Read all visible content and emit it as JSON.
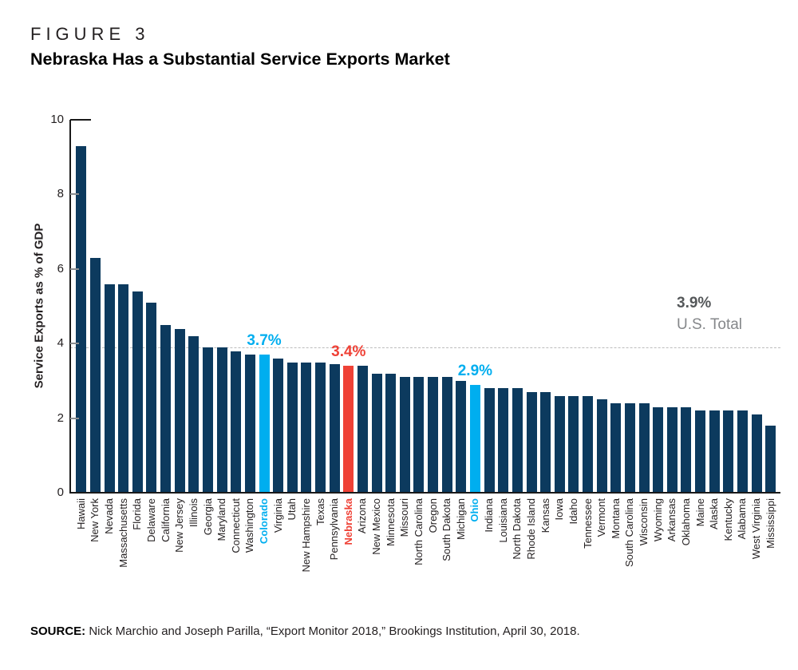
{
  "figure": {
    "label": "FIGURE 3",
    "title": "Nebraska Has a Substantial Service Exports Market"
  },
  "source": {
    "label": "SOURCE:",
    "text": " Nick Marchio and Joseph Parilla, “Export Monitor 2018,” Brookings Institution, April 30, 2018."
  },
  "chart_data": {
    "type": "bar",
    "title": "Nebraska Has a Substantial Service Exports Market",
    "xlabel": "",
    "ylabel": "Service Exports as % of GDP",
    "ylim": [
      0,
      10
    ],
    "yticks": [
      "0",
      "2",
      "4",
      "6",
      "8",
      "10"
    ],
    "grid": "off",
    "legend": "none",
    "reference_line": {
      "value": 3.9,
      "value_label": "3.9%",
      "text_label": "U.S. Total",
      "style": "dashed"
    },
    "categories": [
      "Hawaii",
      "New York",
      "Nevada",
      "Massachusetts",
      "Florida",
      "Delaware",
      "California",
      "New Jersey",
      "Illinois",
      "Georgia",
      "Maryland",
      "Connecticut",
      "Washington",
      "Colorado",
      "Virginia",
      "Utah",
      "New Hampshire",
      "Texas",
      "Pennsylvania",
      "Nebraska",
      "Arizona",
      "New Mexico",
      "Minnesota",
      "Missouri",
      "North Carolina",
      "Oregon",
      "South Dakota",
      "Michigan",
      "Ohio",
      "Indiana",
      "Louisiana",
      "North Dakota",
      "Rhode Island",
      "Kansas",
      "Iowa",
      "Idaho",
      "Tennessee",
      "Vermont",
      "Montana",
      "South Carolina",
      "Wisconsin",
      "Wyoming",
      "Arkansas",
      "Oklahoma",
      "Maine",
      "Alaska",
      "Kentucky",
      "Alabama",
      "West Virginia",
      "Mississippi"
    ],
    "values": [
      9.3,
      6.3,
      5.6,
      5.6,
      5.4,
      5.1,
      4.5,
      4.4,
      4.2,
      3.9,
      3.9,
      3.8,
      3.7,
      3.7,
      3.6,
      3.5,
      3.5,
      3.5,
      3.45,
      3.4,
      3.4,
      3.2,
      3.2,
      3.1,
      3.1,
      3.1,
      3.1,
      3.0,
      2.9,
      2.8,
      2.8,
      2.8,
      2.7,
      2.7,
      2.6,
      2.6,
      2.6,
      2.5,
      2.4,
      2.4,
      2.4,
      2.3,
      2.3,
      2.3,
      2.2,
      2.2,
      2.2,
      2.2,
      2.1,
      1.8
    ],
    "highlights": [
      {
        "state": "Colorado",
        "value_label": "3.7%",
        "color": "#00aeef"
      },
      {
        "state": "Nebraska",
        "value_label": "3.4%",
        "color": "#ef4136"
      },
      {
        "state": "Ohio",
        "value_label": "2.9%",
        "color": "#00aeef"
      }
    ],
    "colors": {
      "bar": "#0c3a5e",
      "highlight_blue": "#00aeef",
      "highlight_red": "#ef4136",
      "reference_value_text": "#55585a",
      "reference_subtext": "#85878a",
      "axis_text": "#231f20"
    }
  }
}
